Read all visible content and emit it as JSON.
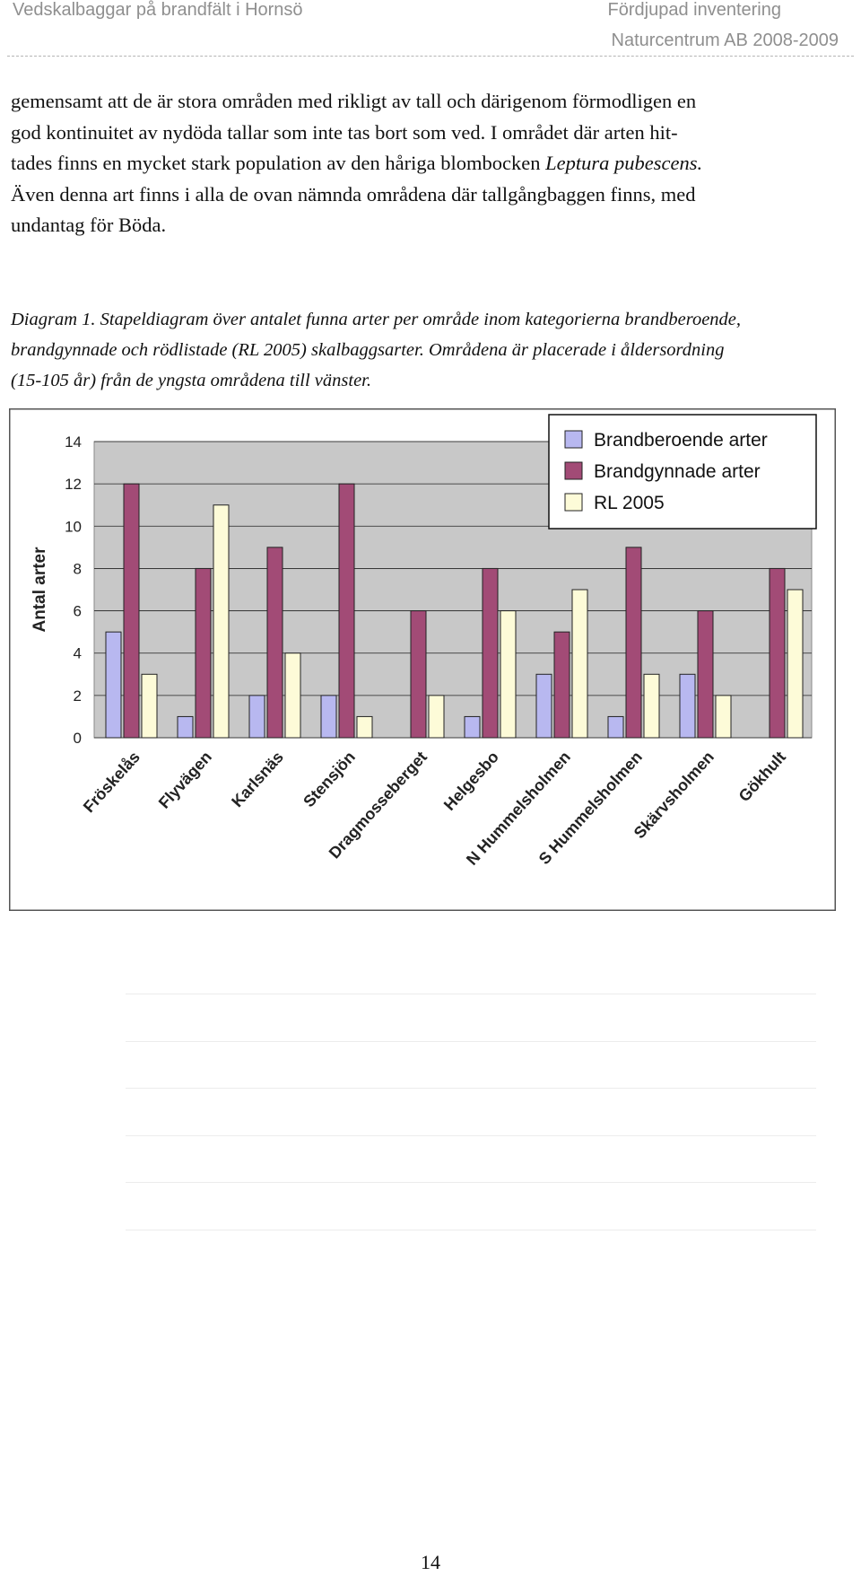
{
  "header": {
    "left": "Vedskalbaggar på brandfält i Hornsö",
    "right_line1": "Fördjupad inventering",
    "right_line2": "Naturcentrum AB 2008-2009"
  },
  "body": {
    "line1": "gemensamt att de är stora områden med rikligt av tall och därigenom förmodligen en",
    "line2": "god kontinuitet av nydöda tallar som inte tas bort som ved. I området där arten hit-",
    "line3_pre": "tades finns en mycket stark population av den håriga blombocken ",
    "line3_species": "Leptura pubescens.",
    "line4": "Även denna art finns i alla de ovan nämnda områdena där tallgångbaggen finns, med",
    "line5": "undantag för Böda."
  },
  "caption": {
    "line1": "Diagram 1. Stapeldiagram över antalet funna arter per område inom kategorierna brandberoende,",
    "line2": "brandgynnade och rödlistade (RL 2005) skalbaggsarter. Områdena är placerade i åldersordning",
    "line3": "(15-105 år) från de yngsta områdena till vänster."
  },
  "chart_data": {
    "type": "bar",
    "ylabel": "Antal arter",
    "ylim": [
      0,
      14
    ],
    "yticks": [
      0,
      2,
      4,
      6,
      8,
      10,
      12,
      14
    ],
    "grid": true,
    "legend_position": "top-right",
    "categories": [
      "Fröskelås",
      "Flyvägen",
      "Karlsnäs",
      "Stensjön",
      "Dragmosseberget",
      "Helgesbo",
      "N Hummelsholmen",
      "S Hummelsholmen",
      "Skärvsholmen",
      "Gökhult"
    ],
    "series": [
      {
        "name": "Brandberoende arter",
        "color": "#b8b8f0",
        "values": [
          5,
          1,
          2,
          2,
          0,
          1,
          3,
          1,
          3,
          0
        ]
      },
      {
        "name": "Brandgynnade arter",
        "color": "#a24b76",
        "values": [
          12,
          8,
          9,
          12,
          6,
          8,
          5,
          9,
          6,
          8
        ]
      },
      {
        "name": "RL 2005",
        "color": "#fdfbd8",
        "values": [
          3,
          11,
          4,
          1,
          2,
          6,
          7,
          3,
          2,
          7
        ]
      }
    ],
    "plot_background": "#c8c8c8"
  },
  "footer": {
    "page_number": "14"
  }
}
